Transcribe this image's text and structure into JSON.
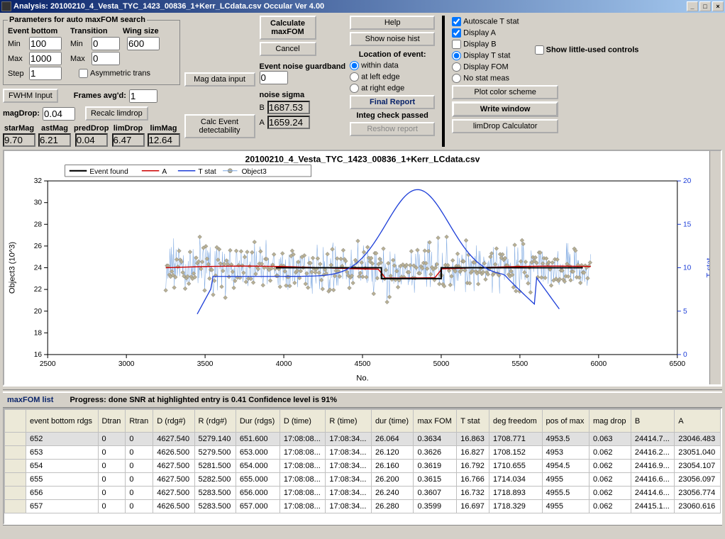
{
  "window": {
    "title": "Analysis: 20100210_4_Vesta_TYC_1423_00836_1+Kerr_LCdata.csv  Occular Ver 4.00"
  },
  "params": {
    "legend": "Parameters for auto maxFOM search",
    "col_headers": {
      "event_bottom": "Event bottom",
      "transition": "Transition",
      "wing_size": "Wing size"
    },
    "labels": {
      "min": "Min",
      "max": "Max",
      "step": "Step"
    },
    "event_bottom_min": "100",
    "event_bottom_max": "1000",
    "step": "1",
    "trans_min": "0",
    "trans_max": "0",
    "wing_size": "600",
    "asym": "Asymmetric trans"
  },
  "buttons": {
    "fwhm": "FWHM Input",
    "frames_avg_lbl": "Frames avg'd:",
    "frames_avg_val": "1",
    "magdrop_lbl": "magDrop:",
    "magdrop_val": "0.04",
    "recalc": "Recalc limdrop",
    "magdata": "Mag data input",
    "calc_event": "Calc Event detectability",
    "calc_maxfom": "Calculate maxFOM",
    "cancel": "Cancel",
    "help": "Help",
    "noisehist": "Show noise hist",
    "finalreport": "Final Report",
    "reshow": "Reshow report",
    "plotcolor": "Plot color scheme",
    "writewin": "Write window",
    "limdropcalc": "limDrop Calculator"
  },
  "magrow": {
    "starMag_lbl": "starMag",
    "starMag": "9.70",
    "astMag_lbl": "astMag",
    "astMag": "6.21",
    "predDrop_lbl": "predDrop",
    "predDrop": "0.04",
    "limDrop_lbl": "limDrop",
    "limDrop": "6.47",
    "limMag_lbl": "limMag",
    "limMag": "12.64"
  },
  "noise": {
    "lbl": "noise sigma",
    "B_lbl": "B",
    "B": "1687.53",
    "A_lbl": "A",
    "A": "1659.24",
    "guard_lbl": "Event noise guardband",
    "guard": "0"
  },
  "location": {
    "title": "Location of event:",
    "within": "within data",
    "left": "at left edge",
    "right": "at right edge",
    "integcheck": "Integ check passed"
  },
  "display": {
    "auto": "Autoscale T stat",
    "a": "Display A",
    "b": "Display B",
    "tstat": "Display T stat",
    "fom": "Display FOM",
    "nostat": "No stat meas",
    "showlittle": "Show little-used controls"
  },
  "chart": {
    "title": "20100210_4_Vesta_TYC_1423_00836_1+Kerr_LCdata.csv",
    "legend": {
      "event": "Event found",
      "a": "A",
      "t": "T stat",
      "obj": "Object3"
    },
    "colors": {
      "event": "#000000",
      "a": "#cc0000",
      "t": "#1e3fd8",
      "obj_line": "#7aa6e0",
      "obj_marker": "#b8b094",
      "axis": "#000000",
      "right_axis": "#1e3fd8"
    },
    "xlabel": "No.",
    "ylabel": "Object3 (10^3)",
    "y2label": "T stat",
    "xlim": [
      2500,
      6500
    ],
    "ylim": [
      16,
      32
    ],
    "y2lim": [
      0,
      20
    ],
    "xticks": [
      2500,
      3000,
      3500,
      4000,
      4500,
      5000,
      5500,
      6000,
      6500
    ],
    "yticks": [
      16,
      18,
      20,
      22,
      24,
      26,
      28,
      30,
      32
    ],
    "y2ticks": [
      0,
      5,
      10,
      15,
      20
    ],
    "data_xstart": 3250,
    "data_xend": 5950,
    "scatter_mean": 24,
    "scatter_sd": 2.2,
    "a_level": 24.0,
    "event_drop_start": 4620,
    "event_drop_end": 5000,
    "event_drop_level": 23.0,
    "tstat_peak_x": 4850,
    "tstat_peak_y": 19,
    "tstat_base": 9
  },
  "midbar": {
    "title": "maxFOM list",
    "progress": "Progress: done  SNR at highlighted entry is 0.41   Confidence level is 91%"
  },
  "table": {
    "columns": [
      "",
      "event bottom rdgs",
      "Dtran",
      "Rtran",
      "D (rdg#)",
      "R (rdg#)",
      "Dur (rdgs)",
      "D (time)",
      "R (time)",
      "dur (time)",
      "max FOM",
      "T stat",
      "deg freedom",
      "pos of max",
      "mag drop",
      "B",
      "A"
    ],
    "rows": [
      [
        "",
        "652",
        "0",
        "0",
        "4627.540",
        "5279.140",
        "651.600",
        "17:08:08...",
        "17:08:34...",
        "26.064",
        "0.3634",
        "16.863",
        "1708.771",
        "4953.5",
        "0.063",
        "24414.7...",
        "23046.483"
      ],
      [
        "",
        "653",
        "0",
        "0",
        "4626.500",
        "5279.500",
        "653.000",
        "17:08:08...",
        "17:08:34...",
        "26.120",
        "0.3626",
        "16.827",
        "1708.152",
        "4953",
        "0.062",
        "24416.2...",
        "23051.040"
      ],
      [
        "",
        "654",
        "0",
        "0",
        "4627.500",
        "5281.500",
        "654.000",
        "17:08:08...",
        "17:08:34...",
        "26.160",
        "0.3619",
        "16.792",
        "1710.655",
        "4954.5",
        "0.062",
        "24416.9...",
        "23054.107"
      ],
      [
        "",
        "655",
        "0",
        "0",
        "4627.500",
        "5282.500",
        "655.000",
        "17:08:08...",
        "17:08:34...",
        "26.200",
        "0.3615",
        "16.766",
        "1714.034",
        "4955",
        "0.062",
        "24416.6...",
        "23056.097"
      ],
      [
        "",
        "656",
        "0",
        "0",
        "4627.500",
        "5283.500",
        "656.000",
        "17:08:08...",
        "17:08:34...",
        "26.240",
        "0.3607",
        "16.732",
        "1718.893",
        "4955.5",
        "0.062",
        "24414.6...",
        "23056.774"
      ],
      [
        "",
        "657",
        "0",
        "0",
        "4626.500",
        "5283.500",
        "657.000",
        "17:08:08...",
        "17:08:34...",
        "26.280",
        "0.3599",
        "16.697",
        "1718.329",
        "4955",
        "0.062",
        "24415.1...",
        "23060.616"
      ]
    ],
    "selected": 0
  }
}
